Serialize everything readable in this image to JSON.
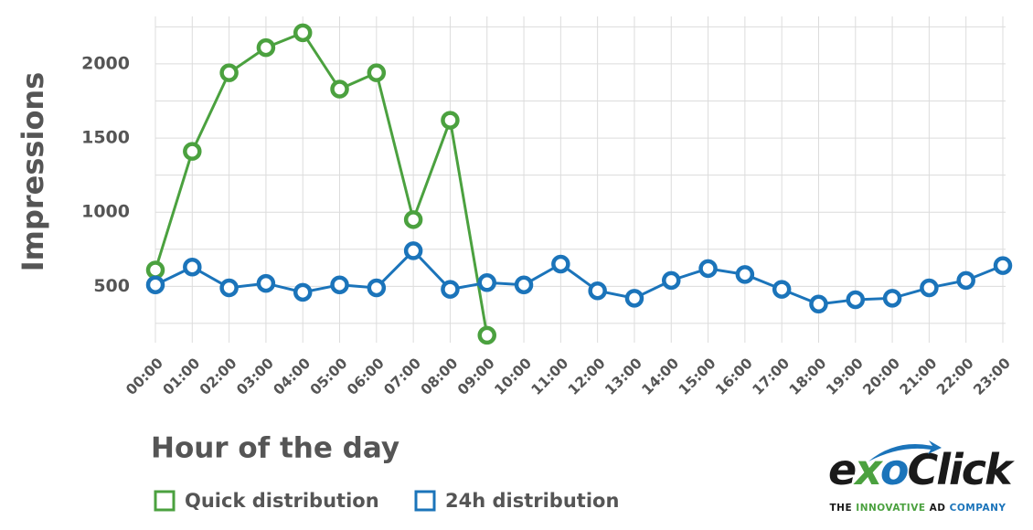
{
  "chart_data": {
    "type": "line",
    "x_label": "Hour of the day",
    "y_label": "Impressions",
    "categories": [
      "00:00",
      "01:00",
      "02:00",
      "03:00",
      "04:00",
      "05:00",
      "06:00",
      "07:00",
      "08:00",
      "09:00",
      "10:00",
      "11:00",
      "12:00",
      "13:00",
      "14:00",
      "15:00",
      "16:00",
      "17:00",
      "18:00",
      "19:00",
      "20:00",
      "21:00",
      "22:00",
      "23:00"
    ],
    "series": [
      {
        "name": "Quick distribution",
        "color": "#4ba13f",
        "values": [
          610,
          1410,
          1940,
          2110,
          2210,
          1830,
          1940,
          950,
          1620,
          170,
          null,
          null,
          null,
          null,
          null,
          null,
          null,
          null,
          null,
          null,
          null,
          null,
          null,
          null
        ]
      },
      {
        "name": "24h distribution",
        "color": "#1b74ba",
        "values": [
          510,
          630,
          490,
          520,
          460,
          510,
          490,
          740,
          480,
          525,
          510,
          650,
          470,
          420,
          540,
          620,
          580,
          480,
          380,
          410,
          420,
          490,
          540,
          640
        ]
      }
    ],
    "ylim": [
      120,
      2320
    ],
    "yticks": [
      500,
      1000,
      1500,
      2000
    ],
    "y_minor_ticks": [
      250,
      750,
      1250,
      1750,
      2250
    ],
    "grid": true,
    "legend": "bottom-left",
    "logo": {
      "name_parts": [
        "e",
        "x",
        "o",
        "Click"
      ],
      "tagline": [
        "THE",
        "INNOVATIVE",
        "AD",
        "COMPANY"
      ]
    }
  }
}
